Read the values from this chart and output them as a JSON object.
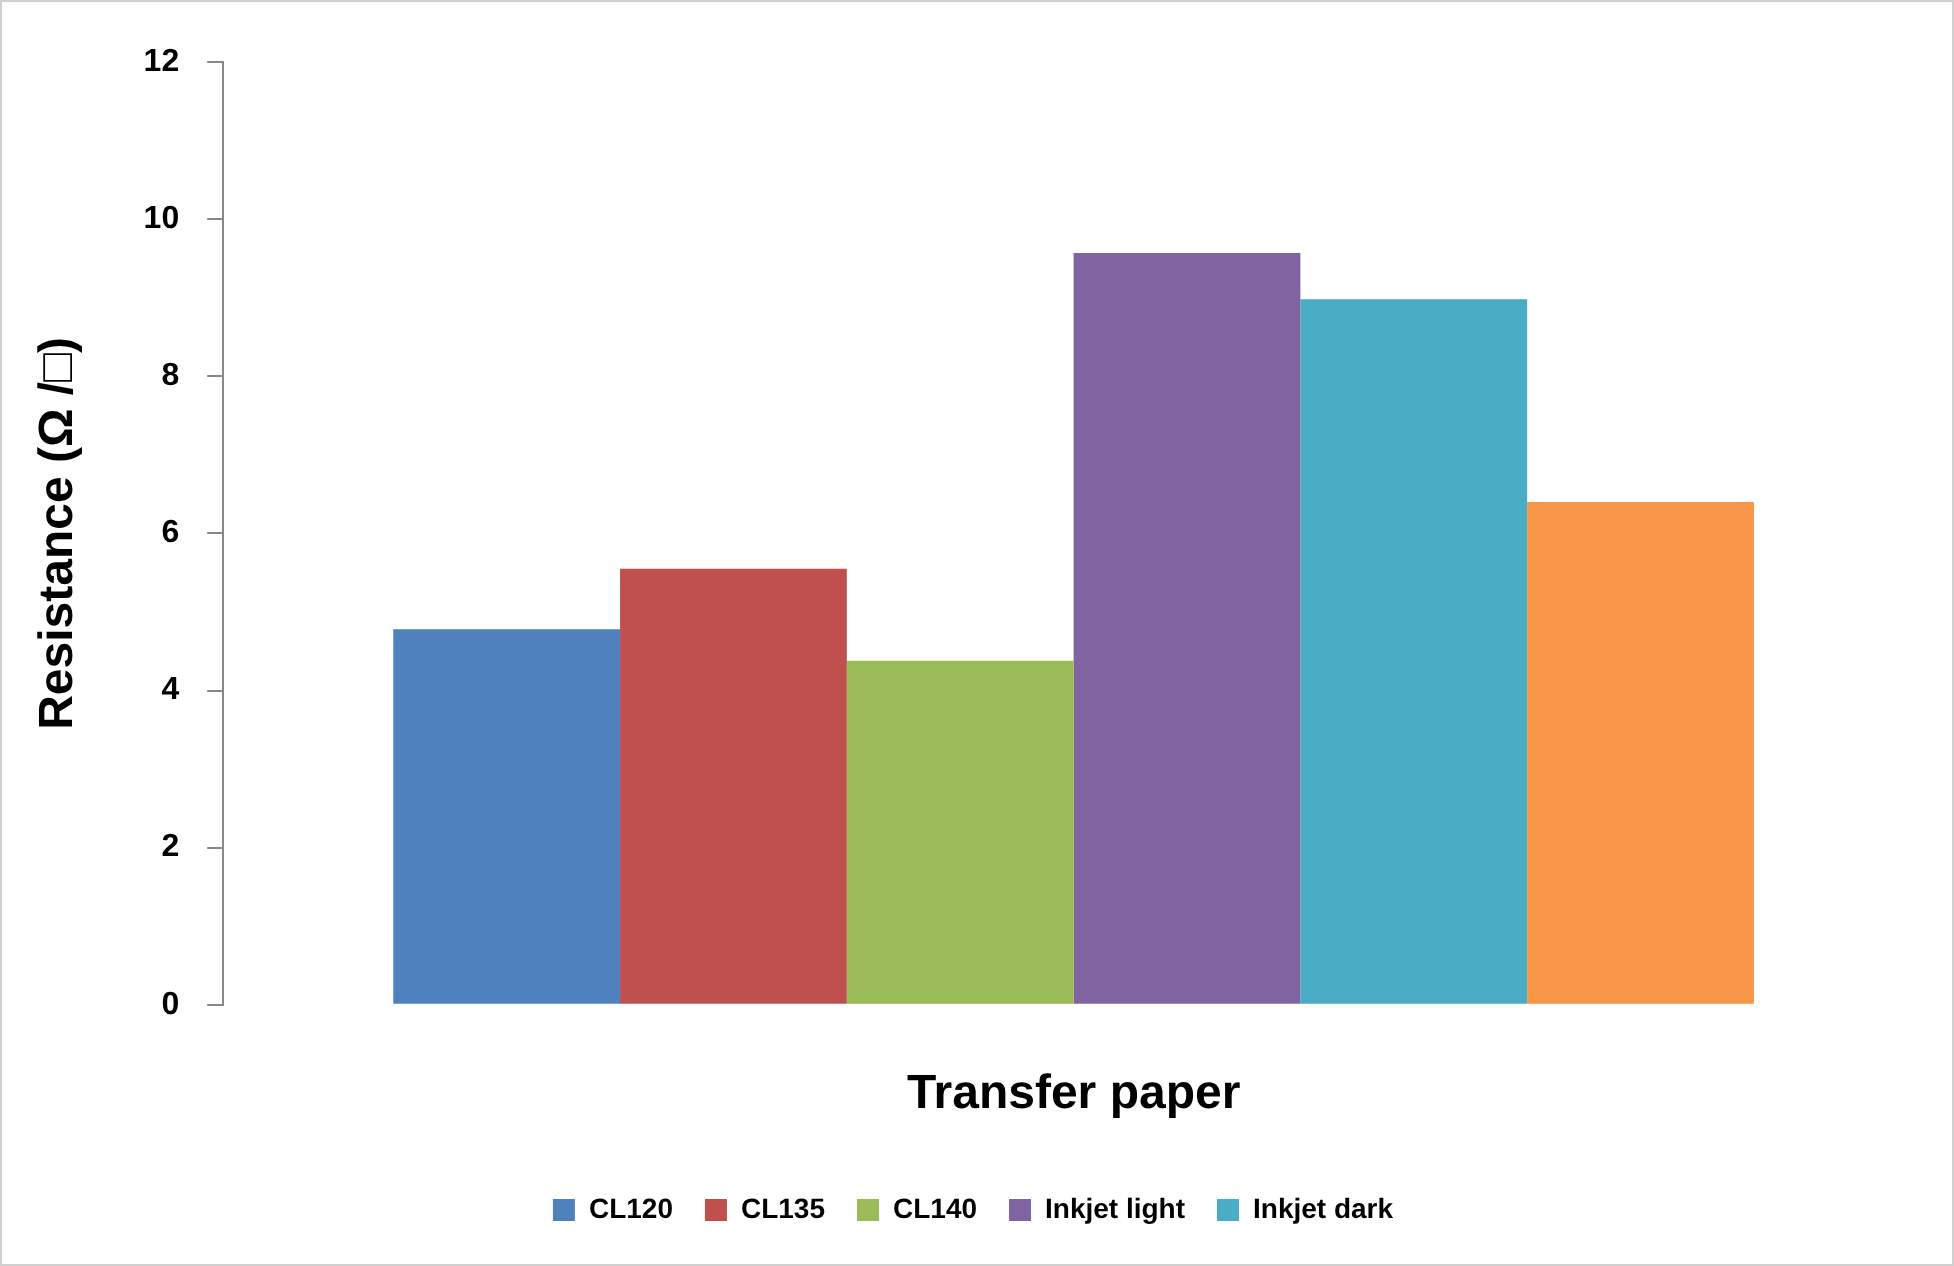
{
  "chart_data": {
    "type": "bar",
    "xlabel": "Transfer paper",
    "ylabel": "Resistance (Ω /□)",
    "categories": [
      null
    ],
    "series": [
      {
        "name": "CL120",
        "color": "#4f81bd",
        "values": [
          4.78
        ]
      },
      {
        "name": "CL135",
        "color": "#c0504d",
        "values": [
          5.55
        ]
      },
      {
        "name": "CL140",
        "color": "#9bbb59",
        "values": [
          4.38
        ]
      },
      {
        "name": "Inkjet light",
        "color": "#8064a2",
        "values": [
          9.57
        ]
      },
      {
        "name": "Inkjet dark",
        "color": "#4bacc6",
        "values": [
          8.98
        ]
      },
      {
        "color": "#f79646",
        "values": [
          6.4
        ]
      }
    ],
    "ylim": [
      0,
      12
    ],
    "yticks": [
      0,
      2,
      4,
      6,
      8,
      10,
      12
    ],
    "grid": false,
    "legend": "bottom"
  }
}
